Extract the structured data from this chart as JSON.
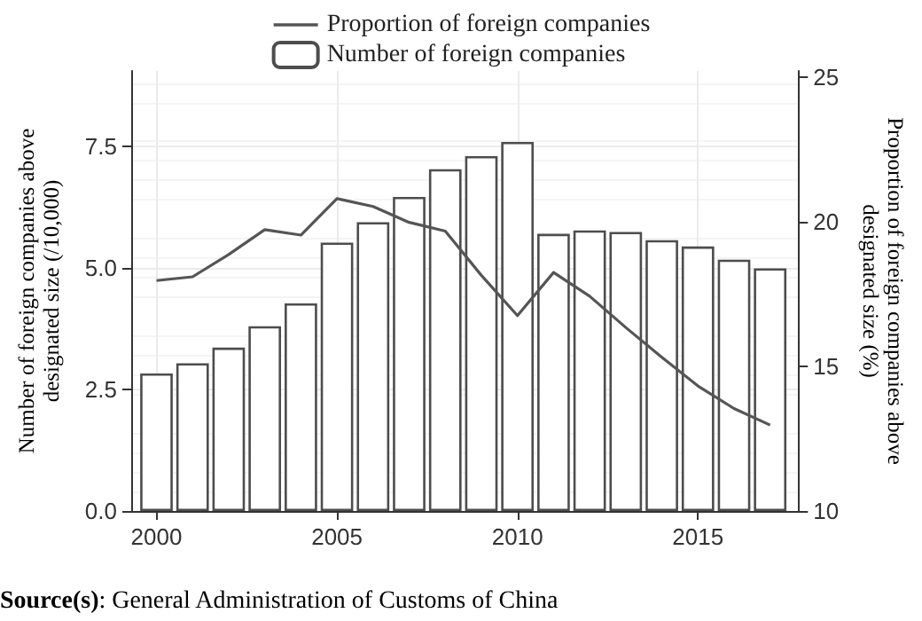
{
  "chart_data": {
    "type": "bar",
    "x": [
      2000,
      2001,
      2002,
      2003,
      2004,
      2005,
      2006,
      2007,
      2008,
      2009,
      2010,
      2011,
      2012,
      2013,
      2014,
      2015,
      2016,
      2017
    ],
    "series": [
      {
        "name": "Proportion of foreign companies",
        "type": "line",
        "axis": "y2",
        "color": "#555555",
        "values": [
          17.96,
          18.09,
          18.86,
          19.72,
          19.53,
          20.79,
          20.52,
          19.97,
          19.67,
          18.14,
          16.75,
          18.24,
          17.42,
          16.34,
          15.31,
          14.32,
          13.54,
          12.97
        ]
      },
      {
        "name": "Number of foreign companies",
        "color": "#ffffff",
        "values": [
          2.83,
          3.04,
          3.36,
          3.8,
          4.27,
          5.52,
          5.94,
          6.46,
          7.03,
          7.3,
          7.59,
          5.7,
          5.77,
          5.74,
          5.57,
          5.44,
          5.17,
          4.99
        ]
      }
    ],
    "xlim": [
      1999.3,
      2017.8
    ],
    "xticks": [
      2000,
      2005,
      2010,
      2015
    ],
    "ylim": [
      0,
      9.05
    ],
    "yticks": [
      {
        "value": 0,
        "label": "0.0"
      },
      2.5,
      {
        "value": 5,
        "label": "5.0"
      },
      7.5
    ],
    "y2lim": [
      10,
      25.2
    ],
    "y2ticks": [
      10,
      15,
      20,
      25
    ],
    "ylabel": "Number of foreign companies above\ndesignated size (/10,000)",
    "y2label": "Proportion of foreign companies above\ndesignated size (%)",
    "annotations": [
      "Source(s): General Administration of Customs of China"
    ],
    "grid": true,
    "legend": "top",
    "marker": "none",
    "line_style": "solid"
  }
}
